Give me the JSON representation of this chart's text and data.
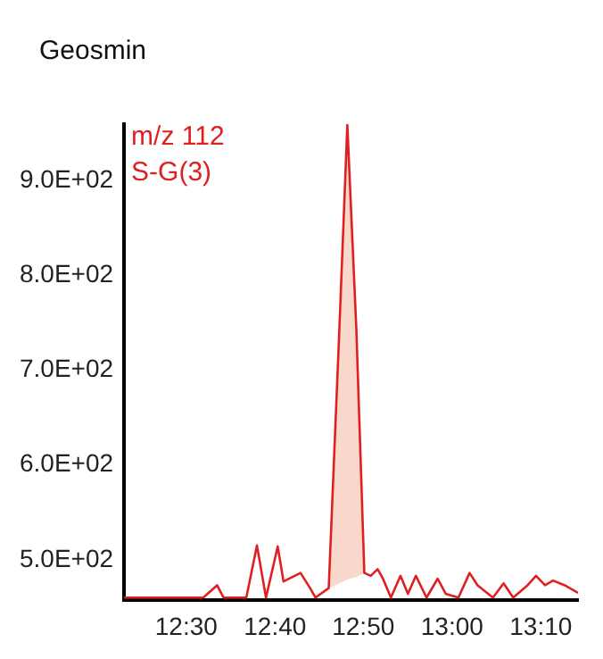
{
  "chart_data": {
    "type": "line",
    "title": "Geosmin",
    "annotations": [
      "m/z 112",
      "S-G(3)"
    ],
    "x": [
      12.383,
      12.532,
      12.54,
      12.558,
      12.57,
      12.613,
      12.633,
      12.65,
      12.672,
      12.683,
      12.715,
      12.733,
      12.743,
      12.768,
      12.788,
      12.803,
      12.82,
      12.835,
      12.847,
      12.86,
      12.87,
      12.885,
      12.903,
      12.917,
      12.932,
      12.952,
      12.973,
      12.988,
      13.012,
      13.033,
      13.048,
      13.077,
      13.097,
      13.115,
      13.142,
      13.158,
      13.175,
      13.19,
      13.212,
      13.237
    ],
    "series": [
      {
        "color": "#e02020",
        "values": [
          460,
          460,
          464,
          473,
          460,
          460,
          515,
          460,
          514,
          477,
          486,
          470,
          460,
          470,
          743,
          959,
          743,
          486,
          483,
          490,
          480,
          460,
          483,
          464,
          483,
          460,
          480,
          464,
          460,
          486,
          473,
          460,
          475,
          460,
          473,
          483,
          473,
          478,
          473,
          465
        ],
        "lower": [
          null,
          null,
          null,
          null,
          null,
          null,
          null,
          null,
          null,
          null,
          null,
          null,
          null,
          470,
          475,
          479,
          482,
          486,
          null,
          null,
          null,
          null,
          null,
          null,
          null,
          null,
          null,
          null,
          null,
          null,
          null,
          null,
          null,
          null,
          null,
          null,
          null,
          null,
          null,
          null
        ],
        "upper": [
          null,
          null,
          null,
          null,
          null,
          null,
          null,
          null,
          null,
          null,
          null,
          null,
          null,
          470,
          743,
          959,
          743,
          486,
          null,
          null,
          null,
          null,
          null,
          null,
          null,
          null,
          null,
          null,
          null,
          null,
          null,
          null,
          null,
          null,
          null,
          null,
          null,
          null,
          null,
          null
        ]
      }
    ],
    "xlim": [
      12.383,
      13.237
    ],
    "xticks": [
      {
        "value": 12.5,
        "label": "12:30"
      },
      {
        "value": 12.667,
        "label": "12:40"
      },
      {
        "value": 12.833,
        "label": "12:50"
      },
      {
        "value": 13,
        "label": "13:00"
      },
      {
        "value": 13.167,
        "label": "13:10"
      }
    ],
    "ylim": [
      457,
      960
    ],
    "yticks": [
      {
        "value": 500,
        "label": "5.0E+02"
      },
      {
        "value": 600,
        "label": "6.0E+02"
      },
      {
        "value": 700,
        "label": "7.0E+02"
      },
      {
        "value": 800,
        "label": "8.0E+02"
      },
      {
        "value": 900,
        "label": "9.0E+02"
      }
    ],
    "grid": false,
    "legend": false,
    "marker": "none",
    "line_style": "solid"
  }
}
